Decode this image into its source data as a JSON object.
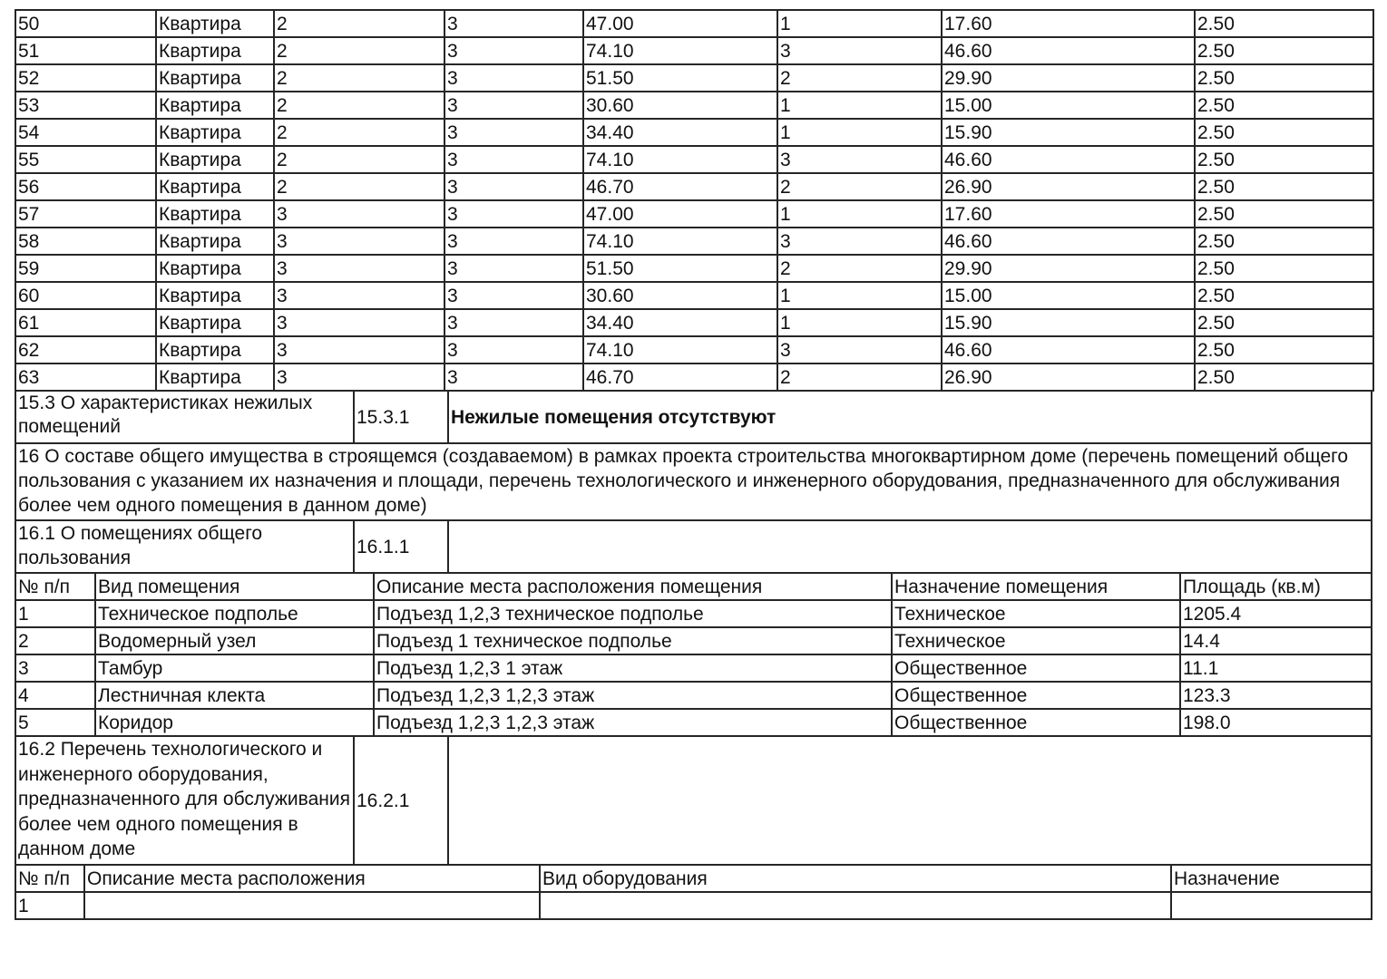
{
  "apartments": {
    "rows": [
      [
        "50",
        "Квартира",
        "2",
        "3",
        "47.00",
        "1",
        "17.60",
        "2.50"
      ],
      [
        "51",
        "Квартира",
        "2",
        "3",
        "74.10",
        "3",
        "46.60",
        "2.50"
      ],
      [
        "52",
        "Квартира",
        "2",
        "3",
        "51.50",
        "2",
        "29.90",
        "2.50"
      ],
      [
        "53",
        "Квартира",
        "2",
        "3",
        "30.60",
        "1",
        "15.00",
        "2.50"
      ],
      [
        "54",
        "Квартира",
        "2",
        "3",
        "34.40",
        "1",
        "15.90",
        "2.50"
      ],
      [
        "55",
        "Квартира",
        "2",
        "3",
        "74.10",
        "3",
        "46.60",
        "2.50"
      ],
      [
        "56",
        "Квартира",
        "2",
        "3",
        "46.70",
        "2",
        "26.90",
        "2.50"
      ],
      [
        "57",
        "Квартира",
        "3",
        "3",
        "47.00",
        "1",
        "17.60",
        "2.50"
      ],
      [
        "58",
        "Квартира",
        "3",
        "3",
        "74.10",
        "3",
        "46.60",
        "2.50"
      ],
      [
        "59",
        "Квартира",
        "3",
        "3",
        "51.50",
        "2",
        "29.90",
        "2.50"
      ],
      [
        "60",
        "Квартира",
        "3",
        "3",
        "30.60",
        "1",
        "15.00",
        "2.50"
      ],
      [
        "61",
        "Квартира",
        "3",
        "3",
        "34.40",
        "1",
        "15.90",
        "2.50"
      ],
      [
        "62",
        "Квартира",
        "3",
        "3",
        "74.10",
        "3",
        "46.60",
        "2.50"
      ],
      [
        "63",
        "Квартира",
        "3",
        "3",
        "46.70",
        "2",
        "26.90",
        "2.50"
      ]
    ]
  },
  "s15_3": {
    "title": "15.3 О характеристиках нежилых помещений",
    "code": "15.3.1",
    "value": "Нежилые помещения отсутствуют"
  },
  "s16": {
    "title": "16 О составе общего имущества в строящемся (создаваемом) в рамках проекта строительства многоквартирном доме (перечень помещений общего пользования с указанием их назначения и площади, перечень технологического и инженерного оборудования, предназначенного для обслуживания более чем одного помещения в данном доме)"
  },
  "s16_1": {
    "title": "16.1 О помещениях общего пользования",
    "code": "16.1.1",
    "value": "",
    "headers": [
      "№ п/п",
      "Вид помещения",
      "Описание места расположения помещения",
      "Назначение помещения",
      "Площадь (кв.м)"
    ],
    "rows": [
      [
        "1",
        "Техническое подполье",
        "Подъезд 1,2,3 техническое подполье",
        "Техническое",
        "1205.4"
      ],
      [
        "2",
        "Водомерный узел",
        "Подъезд 1 техническое подполье",
        "Техническое",
        "14.4"
      ],
      [
        "3",
        "Тамбур",
        "Подъезд 1,2,3 1 этаж",
        "Общественное",
        "11.1"
      ],
      [
        "4",
        "Лестничная клекта",
        "Подъезд 1,2,3 1,2,3 этаж",
        "Общественное",
        "123.3"
      ],
      [
        "5",
        "Коридор",
        "Подъезд 1,2,3 1,2,3 этаж",
        "Общественное",
        "198.0"
      ]
    ]
  },
  "s16_2": {
    "title": "16.2 Перечень технологического и инженерного оборудования, предназначенного для обслуживания более чем одного помещения в данном доме",
    "code": "16.2.1",
    "value": "",
    "headers": [
      "№ п/п",
      "Описание места расположения",
      "Вид оборудования",
      "Назначение"
    ],
    "rows": [
      [
        "1",
        "",
        "",
        ""
      ]
    ]
  }
}
